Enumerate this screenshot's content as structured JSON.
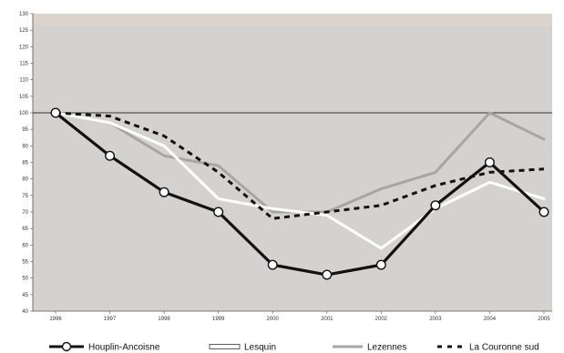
{
  "chart_data": {
    "type": "line",
    "title": "",
    "xlabel": "",
    "ylabel": "",
    "categories": [
      "1996",
      "1997",
      "1998",
      "1999",
      "2000",
      "2001",
      "2002",
      "2003",
      "2004",
      "2005"
    ],
    "ylim": [
      40,
      130
    ],
    "yticks": [
      40,
      45,
      50,
      55,
      60,
      65,
      70,
      75,
      80,
      85,
      90,
      95,
      100,
      105,
      110,
      115,
      120,
      125,
      130
    ],
    "reference_line": 100,
    "grid": false,
    "legend_position": "bottom",
    "plot_background": "#d4d2d0",
    "series": [
      {
        "name": "Houplin-Ancoisne",
        "values": [
          100,
          87,
          76,
          70,
          54,
          51,
          54,
          72,
          85,
          70
        ],
        "color": "#111111",
        "style": "solid-markers"
      },
      {
        "name": "Lesquin",
        "values": [
          100,
          97,
          90,
          74,
          71,
          69,
          59,
          71,
          79,
          74
        ],
        "color": "#ffffff",
        "style": "solid"
      },
      {
        "name": "Lezennes",
        "values": [
          100,
          97,
          87,
          84,
          70,
          70,
          77,
          82,
          100,
          92
        ],
        "color": "#a6a6a6",
        "style": "solid"
      },
      {
        "name": "La Couronne sud",
        "values": [
          100,
          99,
          93,
          82,
          68,
          70,
          72,
          78,
          82,
          83
        ],
        "color": "#111111",
        "style": "dashed"
      }
    ]
  }
}
